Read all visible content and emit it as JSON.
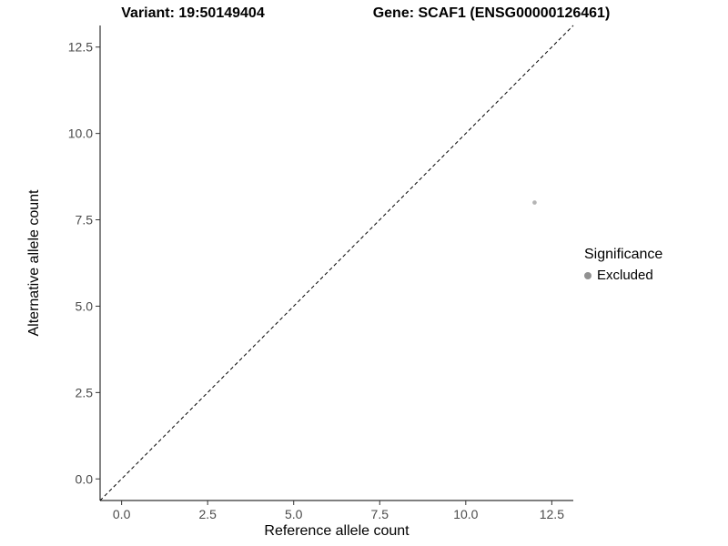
{
  "chart_data": {
    "type": "scatter",
    "title_left": "Variant: 19:50149404",
    "title_right": "Gene: SCAF1 (ENSG00000126461)",
    "xlabel": "Reference allele count",
    "ylabel": "Alternative allele count",
    "xlim": [
      -0.625,
      13.125
    ],
    "ylim": [
      -0.625,
      13.125
    ],
    "x_ticks": [
      0,
      2.5,
      5,
      7.5,
      10,
      12.5
    ],
    "x_tick_labels": [
      "0.0",
      "2.5",
      "5.0",
      "7.5",
      "10.0",
      "12.5"
    ],
    "y_ticks": [
      0,
      2.5,
      5,
      7.5,
      10,
      12.5
    ],
    "y_tick_labels": [
      "0.0",
      "2.5",
      "5.0",
      "7.5",
      "10.0",
      "12.5"
    ],
    "grid": false,
    "reference_line": {
      "type": "abline",
      "slope": 1,
      "intercept": 0,
      "style": "dashed",
      "color": "#000000"
    },
    "series": [
      {
        "name": "Excluded",
        "color": "#b4b4b4",
        "point_radius": 2.3,
        "points": [
          {
            "x": 12,
            "y": 8
          }
        ]
      }
    ],
    "legend": {
      "title": "Significance",
      "position": "right",
      "items": [
        {
          "label": "Excluded",
          "color": "#919191"
        }
      ]
    },
    "axis_color": "#333333"
  }
}
